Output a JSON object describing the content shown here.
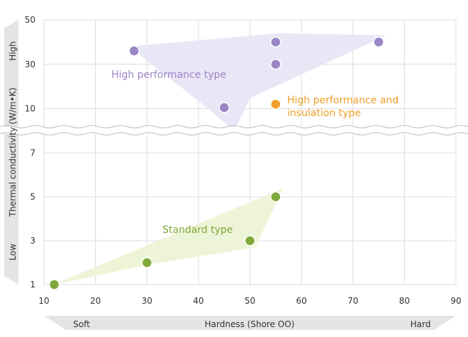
{
  "chart_data": {
    "type": "scatter",
    "xlabel": "Hardness (Shore OO)",
    "ylabel": "Thermal conductivity (W/m•K)",
    "xlim": [
      10,
      90
    ],
    "x_ticks": [
      10,
      20,
      30,
      40,
      50,
      60,
      70,
      80,
      90
    ],
    "y_ticks_low": [
      1,
      3,
      5,
      7
    ],
    "y_ticks_high": [
      10,
      30,
      50
    ],
    "y_axis_broken": true,
    "x_scale_labels": {
      "left": "Soft",
      "right": "Hard"
    },
    "y_scale_labels": {
      "bottom": "Low",
      "top": "High"
    },
    "grid": true,
    "series": [
      {
        "name": "High performance type",
        "color": "#9b86c6",
        "region_color": "#e9e6f6",
        "points": [
          {
            "x": 27.5,
            "y": 36
          },
          {
            "x": 45,
            "y": 10.5
          },
          {
            "x": 55,
            "y": 40
          },
          {
            "x": 55,
            "y": 30
          },
          {
            "x": 75,
            "y": 40
          }
        ]
      },
      {
        "name": "High performance and insulation type",
        "name_lines": [
          "High performance and",
          "insulation type"
        ],
        "color": "#f0a02a",
        "points": [
          {
            "x": 55,
            "y": 12
          }
        ]
      },
      {
        "name": "Standard type",
        "color": "#7fa83a",
        "region_color": "#eef4d8",
        "points": [
          {
            "x": 12,
            "y": 1
          },
          {
            "x": 30,
            "y": 2
          },
          {
            "x": 50,
            "y": 3
          },
          {
            "x": 55,
            "y": 5
          }
        ]
      }
    ]
  }
}
